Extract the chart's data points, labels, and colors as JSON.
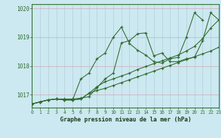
{
  "title": "Graphe pression niveau de la mer (hPa)",
  "bg_color": "#cce8f0",
  "grid_color": "#b0ccd8",
  "line_color": "#2d6b2d",
  "xlim": [
    0,
    23
  ],
  "ylim": [
    1016.55,
    1020.15
  ],
  "yticks": [
    1017,
    1018,
    1019,
    1020
  ],
  "xticks": [
    0,
    1,
    2,
    3,
    4,
    5,
    6,
    7,
    8,
    9,
    10,
    11,
    12,
    13,
    14,
    15,
    16,
    17,
    18,
    19,
    20,
    21,
    22,
    23
  ],
  "series": [
    [
      1016.68,
      1016.75,
      1016.82,
      1016.85,
      1016.85,
      1016.85,
      1016.88,
      1016.93,
      1017.25,
      1017.55,
      1017.75,
      1018.8,
      1018.88,
      1019.12,
      1019.15,
      1018.35,
      1018.45,
      1018.15,
      1018.15,
      1018.25,
      1018.3,
      1018.88,
      1019.85,
      1019.6
    ],
    [
      1016.68,
      1016.75,
      1016.82,
      1016.85,
      1016.82,
      1016.82,
      1017.55,
      1017.75,
      1018.25,
      1018.45,
      1019.0,
      1019.35,
      1018.78,
      1018.55,
      1018.38,
      1018.15,
      1018.1,
      1018.25,
      1018.3,
      1019.0,
      1019.85,
      1019.6,
      null,
      null
    ],
    [
      1016.68,
      1016.75,
      1016.82,
      1016.85,
      1016.82,
      1016.82,
      1016.85,
      1017.05,
      1017.28,
      1017.45,
      1017.55,
      1017.65,
      1017.75,
      1017.88,
      1017.98,
      1018.08,
      1018.18,
      1018.28,
      1018.38,
      1018.52,
      1018.68,
      1018.95,
      1019.32,
      1019.6
    ],
    [
      1016.68,
      1016.75,
      1016.82,
      1016.85,
      1016.82,
      1016.82,
      1016.85,
      1017.05,
      1017.15,
      1017.22,
      1017.32,
      1017.42,
      1017.52,
      1017.62,
      1017.72,
      1017.82,
      1017.92,
      1018.02,
      1018.12,
      1018.22,
      1018.32,
      1018.42,
      1018.52,
      1018.65
    ]
  ]
}
